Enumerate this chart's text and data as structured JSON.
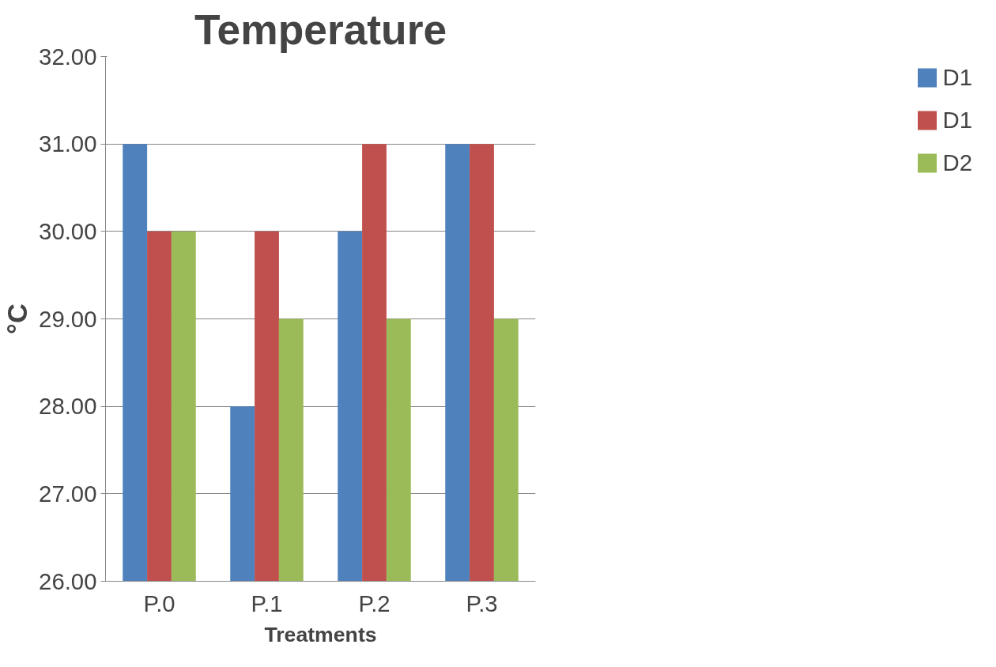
{
  "chart_data": {
    "type": "bar",
    "title": "Temperature",
    "xlabel": "Treatments",
    "ylabel": "°C",
    "categories": [
      "P.0",
      "P.1",
      "P.2",
      "P.3"
    ],
    "series": [
      {
        "name": "D1",
        "color": "#4f81bd",
        "values": [
          31,
          28,
          30,
          31
        ]
      },
      {
        "name": "D1",
        "color": "#c0504d",
        "values": [
          30,
          30,
          31,
          31
        ]
      },
      {
        "name": "D2",
        "color": "#9bbb59",
        "values": [
          30,
          29,
          29,
          29
        ]
      }
    ],
    "ylim": [
      26,
      32
    ],
    "yticks": [
      {
        "value": 26,
        "label": "26.00"
      },
      {
        "value": 27,
        "label": "27.00"
      },
      {
        "value": 28,
        "label": "28.00"
      },
      {
        "value": 29,
        "label": "29.00"
      },
      {
        "value": 30,
        "label": "30.00"
      },
      {
        "value": 31,
        "label": "31.00"
      },
      {
        "value": 32,
        "label": "32.00"
      }
    ],
    "grid": "y",
    "legend": "right"
  }
}
